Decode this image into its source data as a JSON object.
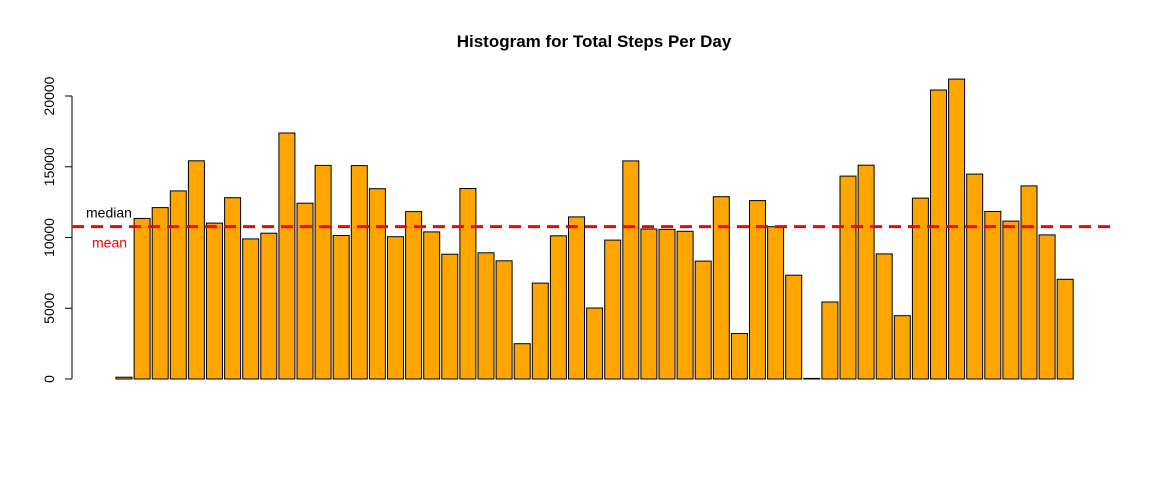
{
  "chart_data": {
    "type": "bar",
    "title": "Histogram for Total Steps Per Day",
    "xlabel": "",
    "ylabel": "",
    "ylim": [
      0,
      22000
    ],
    "yticks": [
      0,
      5000,
      10000,
      15000,
      20000
    ],
    "values": [
      126,
      11352,
      12116,
      13294,
      15420,
      11015,
      12811,
      9900,
      10304,
      17382,
      12426,
      15098,
      10139,
      15084,
      13452,
      10056,
      11829,
      10395,
      8821,
      13460,
      8918,
      8355,
      2492,
      6778,
      10119,
      11458,
      5018,
      9819,
      15414,
      10600,
      10571,
      10439,
      8334,
      12883,
      3219,
      12608,
      10765,
      7336,
      41,
      5441,
      14339,
      15110,
      8841,
      4472,
      12787,
      20427,
      21194,
      14478,
      11834,
      11162,
      13646,
      10183,
      7047
    ],
    "bar_color": "#FFA500",
    "bar_border": "#000000",
    "reference_lines": [
      {
        "label": "median",
        "value": 10765,
        "color": "#000000"
      },
      {
        "label": "mean",
        "value": 10766,
        "color": "#FF0000"
      }
    ],
    "line_color": "#FF0000"
  }
}
